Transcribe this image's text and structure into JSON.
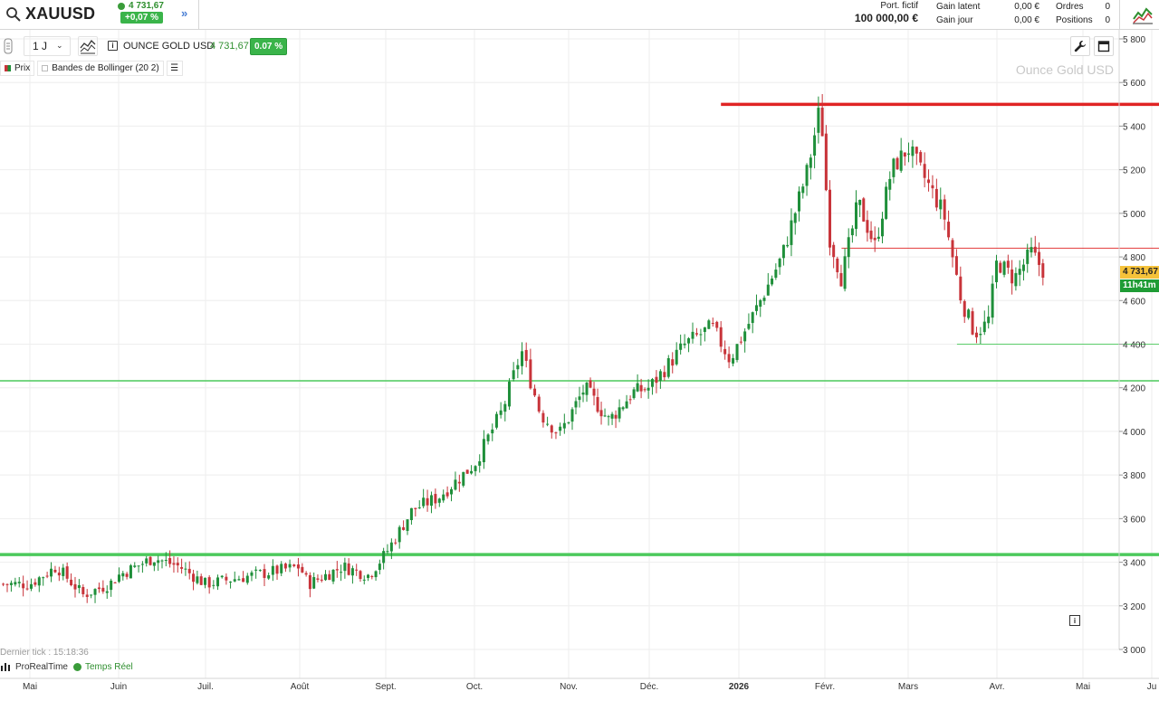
{
  "symbol": {
    "name": "XAUUSD",
    "price": "4 731,67",
    "change": "+0,07 %"
  },
  "account": {
    "fictif_label": "Port. fictif",
    "fictif_value": "100 000,00 €",
    "gain_latent_label": "Gain latent",
    "gain_latent_value": "0,00 €",
    "gain_jour_label": "Gain jour",
    "gain_jour_value": "0,00 €",
    "ordres_label": "Ordres",
    "ordres_value": "0",
    "positions_label": "Positions",
    "positions_value": "0"
  },
  "toolbar": {
    "interval": "1 J",
    "instrument_name": "OUNCE GOLD USD",
    "instrument_price": "4 731,67",
    "instrument_change": "0.07 %"
  },
  "legend": {
    "price": "Prix",
    "bollinger": "Bandes de Bollinger (20 2)"
  },
  "watermark": "Ounce Gold USD",
  "price_tag": "4 731,67",
  "time_tag": "11h41m",
  "footer": {
    "last_tick": "Dernier tick : 15:18:36",
    "brand": "ProRealTime",
    "realtime": "Temps Réel"
  },
  "colors": {
    "up": "#1f8f3a",
    "down": "#c8343a",
    "green_line": "#4cc95c",
    "red_line": "#e02424",
    "grid": "#eeeeee"
  },
  "chart_data": {
    "type": "candlestick",
    "ylim": [
      2940,
      5910
    ],
    "y_ticks": [
      "5 800",
      "5 600",
      "5 400",
      "5 200",
      "5 000",
      "4 800",
      "4 600",
      "4 400",
      "4 200",
      "4 000",
      "3 800",
      "3 600",
      "3 400",
      "3 200",
      "3 000"
    ],
    "x_labels": [
      "Mai",
      "Juin",
      "Juil.",
      "Août",
      "Sept.",
      "Oct.",
      "Nov.",
      "Déc.",
      "2026",
      "Févr.",
      "Mars",
      "Avr.",
      "Mai",
      "Ju"
    ],
    "horizontal_lines": [
      {
        "price": 5500,
        "color": "red_line",
        "weight": "thick",
        "from_month": 7.8
      },
      {
        "price": 4840,
        "color": "red_line",
        "weight": "thin",
        "from_month": 9.2
      },
      {
        "price": 4400,
        "color": "green_line",
        "weight": "thin",
        "from_month": 10.55
      },
      {
        "price": 4232,
        "color": "green_line",
        "weight": "medium",
        "from_month": 0
      },
      {
        "price": 3435,
        "color": "green_line",
        "weight": "thick",
        "from_month": 0
      }
    ],
    "series": [
      {
        "label_index": 0,
        "close": 3300
      },
      {
        "label_index": 0.3,
        "close": 3380
      },
      {
        "label_index": 0.6,
        "close": 3250
      },
      {
        "label_index": 0.9,
        "close": 3300
      },
      {
        "label_index": 1.0,
        "close": 3340
      },
      {
        "label_index": 1.4,
        "close": 3420
      },
      {
        "label_index": 1.7,
        "close": 3380
      },
      {
        "label_index": 2.0,
        "close": 3300
      },
      {
        "label_index": 2.5,
        "close": 3340
      },
      {
        "label_index": 3.0,
        "close": 3380
      },
      {
        "label_index": 3.1,
        "close": 3300
      },
      {
        "label_index": 3.5,
        "close": 3380
      },
      {
        "label_index": 3.8,
        "close": 3340
      },
      {
        "label_index": 4.0,
        "close": 3440
      },
      {
        "label_index": 4.3,
        "close": 3640
      },
      {
        "label_index": 4.6,
        "close": 3700
      },
      {
        "label_index": 5.0,
        "close": 3850
      },
      {
        "label_index": 5.3,
        "close": 4100
      },
      {
        "label_index": 5.5,
        "close": 4370
      },
      {
        "label_index": 5.7,
        "close": 4080
      },
      {
        "label_index": 5.9,
        "close": 3990
      },
      {
        "label_index": 6.2,
        "close": 4200
      },
      {
        "label_index": 6.5,
        "close": 4050
      },
      {
        "label_index": 6.8,
        "close": 4180
      },
      {
        "label_index": 7.0,
        "close": 4200
      },
      {
        "label_index": 7.4,
        "close": 4400
      },
      {
        "label_index": 7.7,
        "close": 4480
      },
      {
        "label_index": 7.9,
        "close": 4330
      },
      {
        "label_index": 8.2,
        "close": 4560
      },
      {
        "label_index": 8.5,
        "close": 4800
      },
      {
        "label_index": 8.8,
        "close": 5200
      },
      {
        "label_index": 8.95,
        "close": 5500
      },
      {
        "label_index": 9.05,
        "close": 4900
      },
      {
        "label_index": 9.2,
        "close": 4700
      },
      {
        "label_index": 9.4,
        "close": 5050
      },
      {
        "label_index": 9.6,
        "close": 4850
      },
      {
        "label_index": 9.8,
        "close": 5200
      },
      {
        "label_index": 10.0,
        "close": 5300
      },
      {
        "label_index": 10.2,
        "close": 5150
      },
      {
        "label_index": 10.4,
        "close": 5000
      },
      {
        "label_index": 10.6,
        "close": 4600
      },
      {
        "label_index": 10.75,
        "close": 4450
      },
      {
        "label_index": 10.9,
        "close": 4500
      },
      {
        "label_index": 11.0,
        "close": 4780
      },
      {
        "label_index": 11.2,
        "close": 4700
      },
      {
        "label_index": 11.4,
        "close": 4820
      },
      {
        "label_index": 11.55,
        "close": 4731.67
      }
    ]
  }
}
